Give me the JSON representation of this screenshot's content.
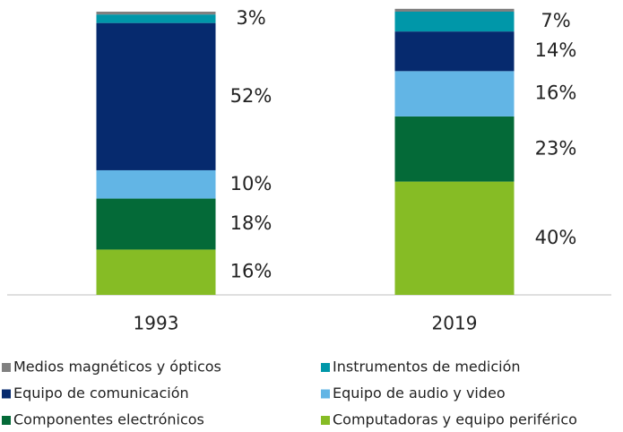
{
  "chart_data": {
    "type": "stacked_bar",
    "categories": [
      "1993",
      "2019"
    ],
    "series": [
      {
        "name": "Computadoras y equipo periférico",
        "color": "#86bc25",
        "values": [
          16,
          40
        ],
        "value_labels": [
          "16%",
          "40%"
        ]
      },
      {
        "name": "Componentes electrónicos",
        "color": "#046a38",
        "values": [
          18,
          23
        ],
        "value_labels": [
          "18%",
          "23%"
        ]
      },
      {
        "name": "Equipo de audio y video",
        "color": "#62b5e5",
        "values": [
          10,
          16
        ],
        "value_labels": [
          "10%",
          "16%"
        ]
      },
      {
        "name": "Equipo de comunicación",
        "color": "#062a6e",
        "values": [
          52,
          14
        ],
        "value_labels": [
          "52%",
          "14%"
        ]
      },
      {
        "name": "Instrumentos de medición",
        "color": "#0097a9",
        "values": [
          3,
          7
        ],
        "value_labels": [
          "3%",
          "7%"
        ]
      },
      {
        "name": "Medios magnéticos y ópticos",
        "color": "#808080",
        "values": [
          1,
          1
        ]
      }
    ]
  }
}
